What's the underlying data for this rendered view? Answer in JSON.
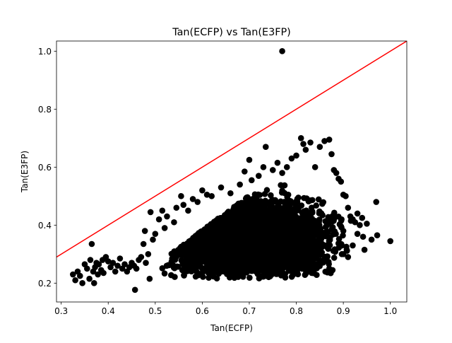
{
  "chart_data": {
    "type": "scatter",
    "title": "Tan(ECFP) vs Tan(E3FP)",
    "xlabel": "Tan(ECFP)",
    "ylabel": "Tan(E3FP)",
    "xlim": [
      0.29,
      1.035
    ],
    "ylim": [
      0.135,
      1.035
    ],
    "xticks": [
      0.3,
      0.4,
      0.5,
      0.6,
      0.7,
      0.8,
      0.9,
      1.0
    ],
    "xtick_labels": [
      "0.3",
      "0.4",
      "0.5",
      "0.6",
      "0.7",
      "0.8",
      "0.9",
      "1.0"
    ],
    "yticks": [
      0.2,
      0.4,
      0.6,
      0.8,
      1.0
    ],
    "ytick_labels": [
      "0.2",
      "0.4",
      "0.6",
      "0.8",
      "1.0"
    ],
    "marker_color": "#000000",
    "reference_line": {
      "label": "y = x",
      "from": [
        0.29,
        0.29
      ],
      "to": [
        1.035,
        1.035
      ],
      "color": "#ff0000"
    },
    "dense_cloud_seed": 12345,
    "dense_cloud_count": 5500,
    "dense_cloud_description": "dense black cloud of points, x about 0.51-0.93, y about 0.21-0.55",
    "points": [
      [
        0.77,
        1.0
      ],
      [
        0.325,
        0.23
      ],
      [
        0.33,
        0.21
      ],
      [
        0.335,
        0.24
      ],
      [
        0.34,
        0.225
      ],
      [
        0.345,
        0.2
      ],
      [
        0.35,
        0.265
      ],
      [
        0.355,
        0.25
      ],
      [
        0.36,
        0.215
      ],
      [
        0.362,
        0.28
      ],
      [
        0.365,
        0.335
      ],
      [
        0.368,
        0.24
      ],
      [
        0.37,
        0.2
      ],
      [
        0.372,
        0.255
      ],
      [
        0.375,
        0.27
      ],
      [
        0.378,
        0.23
      ],
      [
        0.38,
        0.265
      ],
      [
        0.385,
        0.245
      ],
      [
        0.388,
        0.28
      ],
      [
        0.39,
        0.235
      ],
      [
        0.395,
        0.29
      ],
      [
        0.4,
        0.275
      ],
      [
        0.405,
        0.255
      ],
      [
        0.41,
        0.27
      ],
      [
        0.415,
        0.24
      ],
      [
        0.42,
        0.26
      ],
      [
        0.425,
        0.285
      ],
      [
        0.43,
        0.25
      ],
      [
        0.435,
        0.265
      ],
      [
        0.44,
        0.24
      ],
      [
        0.445,
        0.255
      ],
      [
        0.45,
        0.27
      ],
      [
        0.455,
        0.26
      ],
      [
        0.457,
        0.177
      ],
      [
        0.46,
        0.25
      ],
      [
        0.465,
        0.28
      ],
      [
        0.47,
        0.29
      ],
      [
        0.475,
        0.335
      ],
      [
        0.478,
        0.38
      ],
      [
        0.48,
        0.27
      ],
      [
        0.485,
        0.3
      ],
      [
        0.488,
        0.215
      ],
      [
        0.49,
        0.445
      ],
      [
        0.495,
        0.35
      ],
      [
        0.5,
        0.37
      ],
      [
        0.508,
        0.42
      ],
      [
        0.515,
        0.45
      ],
      [
        0.52,
        0.39
      ],
      [
        0.525,
        0.43
      ],
      [
        0.54,
        0.41
      ],
      [
        0.545,
        0.46
      ],
      [
        0.555,
        0.5
      ],
      [
        0.56,
        0.47
      ],
      [
        0.57,
        0.45
      ],
      [
        0.58,
        0.49
      ],
      [
        0.59,
        0.48
      ],
      [
        0.6,
        0.52
      ],
      [
        0.61,
        0.505
      ],
      [
        0.62,
        0.5
      ],
      [
        0.64,
        0.53
      ],
      [
        0.66,
        0.51
      ],
      [
        0.68,
        0.54
      ],
      [
        0.69,
        0.585
      ],
      [
        0.7,
        0.625
      ],
      [
        0.705,
        0.555
      ],
      [
        0.72,
        0.57
      ],
      [
        0.73,
        0.6
      ],
      [
        0.735,
        0.67
      ],
      [
        0.75,
        0.59
      ],
      [
        0.76,
        0.615
      ],
      [
        0.77,
        0.58
      ],
      [
        0.78,
        0.6
      ],
      [
        0.79,
        0.63
      ],
      [
        0.8,
        0.64
      ],
      [
        0.81,
        0.7
      ],
      [
        0.815,
        0.68
      ],
      [
        0.82,
        0.66
      ],
      [
        0.83,
        0.685
      ],
      [
        0.84,
        0.6
      ],
      [
        0.85,
        0.67
      ],
      [
        0.86,
        0.69
      ],
      [
        0.87,
        0.695
      ],
      [
        0.875,
        0.645
      ],
      [
        0.88,
        0.59
      ],
      [
        0.885,
        0.58
      ],
      [
        0.89,
        0.56
      ],
      [
        0.895,
        0.55
      ],
      [
        0.9,
        0.505
      ],
      [
        0.905,
        0.5
      ],
      [
        0.91,
        0.46
      ],
      [
        0.915,
        0.43
      ],
      [
        0.92,
        0.42
      ],
      [
        0.925,
        0.41
      ],
      [
        0.93,
        0.44
      ],
      [
        0.935,
        0.4
      ],
      [
        0.94,
        0.425
      ],
      [
        0.942,
        0.36
      ],
      [
        0.945,
        0.315
      ],
      [
        0.95,
        0.405
      ],
      [
        0.97,
        0.48
      ],
      [
        0.972,
        0.365
      ],
      [
        1.0,
        0.345
      ],
      [
        0.91,
        0.29
      ],
      [
        0.9,
        0.3
      ],
      [
        0.87,
        0.25
      ],
      [
        0.85,
        0.27
      ],
      [
        0.82,
        0.26
      ],
      [
        0.96,
        0.35
      ],
      [
        0.93,
        0.37
      ],
      [
        0.92,
        0.33
      ],
      [
        0.9,
        0.38
      ],
      [
        0.88,
        0.42
      ]
    ]
  }
}
